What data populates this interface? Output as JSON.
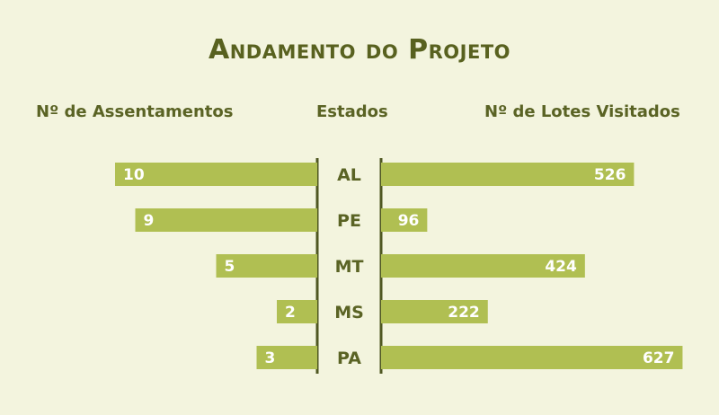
{
  "title": "Andamento do Projeto",
  "chart_data": {
    "type": "bar",
    "orientation": "horizontal-butterfly",
    "title": "Andamento do Projeto",
    "category_label": "Estados",
    "categories": [
      "AL",
      "PE",
      "MT",
      "MS",
      "PA"
    ],
    "series": [
      {
        "name": "Nº de Assentamentos",
        "side": "left",
        "values": [
          10,
          9,
          5,
          2,
          3
        ]
      },
      {
        "name": "Nº de Lotes Visitados",
        "side": "right",
        "values": [
          526,
          96,
          424,
          222,
          627
        ]
      }
    ],
    "grid": false,
    "colors": {
      "bar": "#b0bf52",
      "text": "#5a6324",
      "axis": "#4f5721",
      "background": "#f3f4de"
    }
  }
}
